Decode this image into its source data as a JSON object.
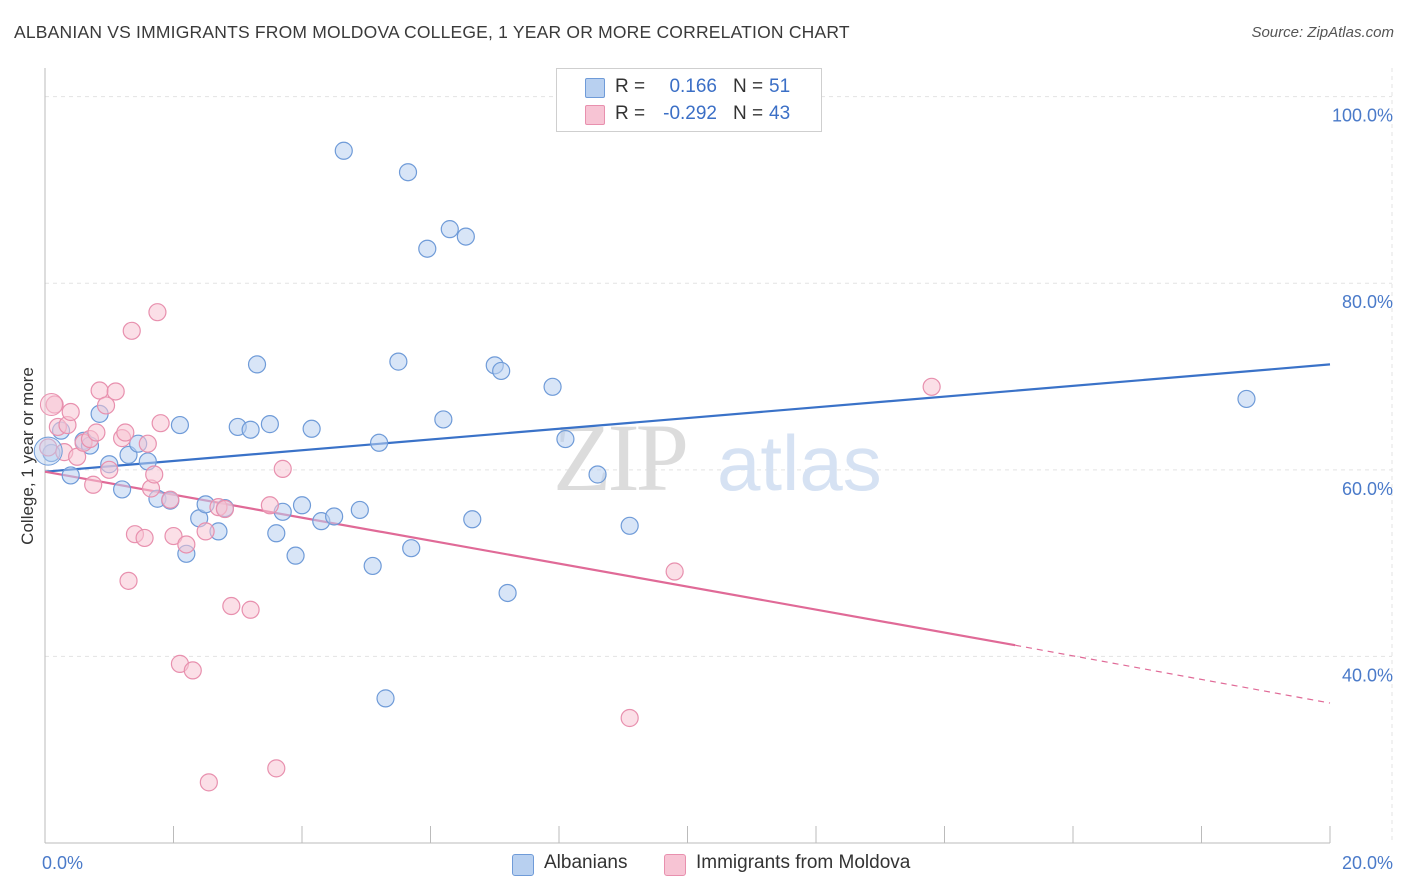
{
  "header": {
    "title": "ALBANIAN VS IMMIGRANTS FROM MOLDOVA COLLEGE, 1 YEAR OR MORE CORRELATION CHART",
    "source": "Source: ZipAtlas.com"
  },
  "watermark": {
    "zip": "ZIP",
    "atlas": "atlas"
  },
  "colors": {
    "albanians_fill": "#b8d0f0",
    "albanians_stroke": "#6f9bd8",
    "albanians_line": "#3a72c8",
    "moldova_fill": "#f7c4d4",
    "moldova_stroke": "#e890ae",
    "moldova_line": "#e06a97",
    "grid": "#e3e3e3",
    "axis_text": "#4a7ac9"
  },
  "legend_top": {
    "rows": [
      {
        "r_label": "R =",
        "r_value": "0.166",
        "n_label": "N =",
        "n_value": "51"
      },
      {
        "r_label": "R =",
        "r_value": "-0.292",
        "n_label": "N =",
        "n_value": "43"
      }
    ]
  },
  "legend_bottom": {
    "items": [
      "Albanians",
      "Immigrants from Moldova"
    ]
  },
  "chart_data": {
    "type": "scatter",
    "title": "ALBANIAN VS IMMIGRANTS FROM MOLDOVA COLLEGE, 1 YEAR OR MORE CORRELATION CHART",
    "xlabel": "",
    "ylabel": "College, 1 year or more",
    "xlim": [
      0,
      20
    ],
    "ylim": [
      20,
      102
    ],
    "x_tick_labels": [
      "0.0%",
      "20.0%"
    ],
    "y_ticks": [
      40,
      60,
      80,
      100
    ],
    "y_tick_labels": [
      "40.0%",
      "60.0%",
      "80.0%",
      "100.0%"
    ],
    "grid": true,
    "legend_position": "bottom",
    "series": [
      {
        "name": "Albanians",
        "r": 0.166,
        "n": 51,
        "trend": {
          "x": [
            0,
            20
          ],
          "y": [
            59.8,
            71.3
          ]
        },
        "points": [
          [
            0.1,
            61.8
          ],
          [
            0.25,
            64.2
          ],
          [
            0.4,
            59.4
          ],
          [
            0.6,
            63.1
          ],
          [
            0.7,
            62.6
          ],
          [
            0.85,
            66.0
          ],
          [
            1.0,
            60.6
          ],
          [
            1.2,
            57.9
          ],
          [
            1.3,
            61.6
          ],
          [
            1.45,
            62.8
          ],
          [
            1.6,
            60.9
          ],
          [
            1.75,
            56.9
          ],
          [
            1.95,
            56.7
          ],
          [
            2.1,
            64.8
          ],
          [
            2.2,
            51.0
          ],
          [
            2.4,
            54.8
          ],
          [
            2.5,
            56.3
          ],
          [
            2.7,
            53.4
          ],
          [
            2.8,
            55.9
          ],
          [
            3.0,
            64.6
          ],
          [
            3.2,
            64.3
          ],
          [
            3.3,
            71.3
          ],
          [
            3.5,
            64.9
          ],
          [
            3.6,
            53.2
          ],
          [
            3.7,
            55.5
          ],
          [
            3.9,
            50.8
          ],
          [
            4.0,
            56.2
          ],
          [
            4.15,
            64.4
          ],
          [
            4.3,
            54.5
          ],
          [
            4.5,
            55.0
          ],
          [
            4.65,
            94.2
          ],
          [
            4.9,
            55.7
          ],
          [
            5.1,
            49.7
          ],
          [
            5.2,
            62.9
          ],
          [
            5.3,
            35.5
          ],
          [
            5.5,
            71.6
          ],
          [
            5.65,
            91.9
          ],
          [
            5.7,
            51.6
          ],
          [
            5.95,
            83.7
          ],
          [
            6.2,
            65.4
          ],
          [
            6.3,
            85.8
          ],
          [
            6.55,
            85.0
          ],
          [
            6.65,
            54.7
          ],
          [
            7.0,
            71.2
          ],
          [
            7.1,
            70.6
          ],
          [
            7.2,
            46.8
          ],
          [
            7.9,
            68.9
          ],
          [
            8.1,
            63.3
          ],
          [
            8.6,
            59.5
          ],
          [
            9.1,
            54.0
          ],
          [
            18.7,
            67.6
          ]
        ]
      },
      {
        "name": "Immigrants from Moldova",
        "r": -0.292,
        "n": 43,
        "trend": {
          "x": [
            0,
            15.1
          ],
          "y": [
            59.8,
            41.2
          ]
        },
        "trend_dashed": {
          "x": [
            15.1,
            20
          ],
          "y": [
            41.2,
            35.0
          ]
        },
        "points": [
          [
            0.05,
            62.4
          ],
          [
            0.15,
            67.0
          ],
          [
            0.2,
            64.6
          ],
          [
            0.3,
            61.9
          ],
          [
            0.35,
            64.8
          ],
          [
            0.4,
            66.2
          ],
          [
            0.5,
            61.4
          ],
          [
            0.6,
            62.9
          ],
          [
            0.7,
            63.3
          ],
          [
            0.75,
            58.4
          ],
          [
            0.8,
            64.0
          ],
          [
            0.85,
            68.5
          ],
          [
            0.95,
            66.9
          ],
          [
            1.0,
            60.0
          ],
          [
            1.1,
            68.4
          ],
          [
            1.2,
            63.4
          ],
          [
            1.25,
            64.0
          ],
          [
            1.3,
            48.1
          ],
          [
            1.35,
            74.9
          ],
          [
            1.4,
            53.1
          ],
          [
            1.55,
            52.7
          ],
          [
            1.6,
            62.8
          ],
          [
            1.65,
            58.0
          ],
          [
            1.7,
            59.5
          ],
          [
            1.75,
            76.9
          ],
          [
            1.8,
            65.0
          ],
          [
            1.95,
            56.8
          ],
          [
            2.0,
            52.9
          ],
          [
            2.1,
            39.2
          ],
          [
            2.2,
            52.0
          ],
          [
            2.3,
            38.5
          ],
          [
            2.5,
            53.4
          ],
          [
            2.55,
            26.5
          ],
          [
            2.7,
            56.0
          ],
          [
            2.8,
            55.8
          ],
          [
            2.9,
            45.4
          ],
          [
            3.2,
            45.0
          ],
          [
            3.6,
            28.0
          ],
          [
            3.7,
            60.1
          ],
          [
            9.1,
            33.4
          ],
          [
            9.8,
            49.1
          ],
          [
            13.8,
            68.9
          ],
          [
            3.5,
            56.2
          ]
        ]
      }
    ]
  }
}
